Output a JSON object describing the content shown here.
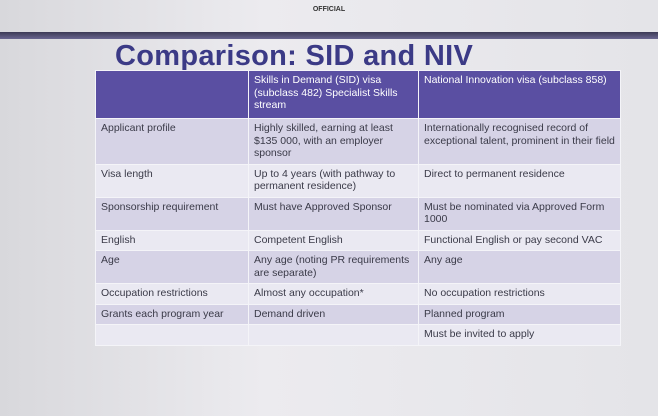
{
  "header": {
    "marking": "OFFICIAL",
    "title": "Comparison: SID and NIV"
  },
  "table": {
    "columns": [
      null,
      "Skills in Demand (SID) visa (subclass 482) Specialist Skills stream",
      "National Innovation visa (subclass 858)"
    ],
    "rows": [
      [
        "Applicant profile",
        "Highly skilled, earning at least $135 000, with an employer sponsor",
        "Internationally recognised record of exceptional talent, prominent in their field"
      ],
      [
        "Visa length",
        "Up to 4 years (with pathway to permanent residence)",
        "Direct to permanent residence"
      ],
      [
        "Sponsorship requirement",
        "Must have Approved Sponsor",
        "Must be nominated via Approved Form 1000"
      ],
      [
        "English",
        "Competent English",
        "Functional English or pay second VAC"
      ],
      [
        "Age",
        "Any age (noting PR requirements are separate)",
        "Any age"
      ],
      [
        "Occupation restrictions",
        "Almost any occupation*",
        "No occupation restrictions"
      ],
      [
        "Grants each program year",
        "Demand driven",
        "Planned program"
      ],
      [
        null,
        null,
        "Must be invited to apply"
      ]
    ]
  }
}
